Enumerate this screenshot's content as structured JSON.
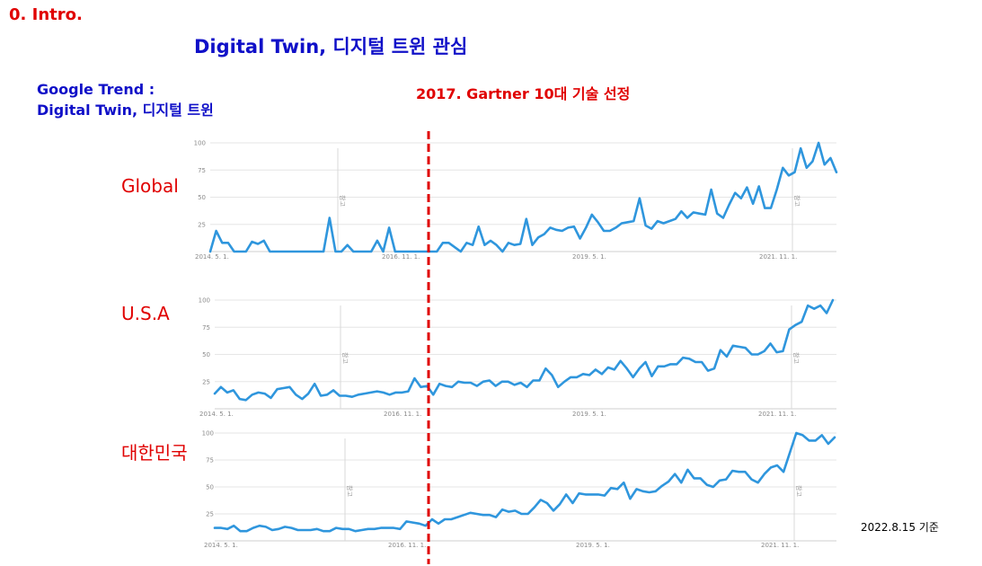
{
  "section_title": "0. Intro.",
  "slide_title": "Digital Twin, 디지털 트윈 관심",
  "trend_caption_line1": "Google Trend :",
  "trend_caption_line2": "Digital Twin, 디지털 트윈",
  "gartner_label": "2017. Gartner 10대 기술 선정",
  "date_note": "2022.8.15 기준",
  "colors": {
    "line": "#2f96dd",
    "title_blue": "#1010c8",
    "accent_red": "#e00000",
    "grid": "#e6e6e6"
  },
  "chart_data": [
    {
      "type": "line",
      "region": "Global",
      "y_ticks": [
        "100",
        "75",
        "50",
        "25"
      ],
      "ylim": [
        0,
        100
      ],
      "x_tick_labels": [
        "2014. 5. 1.",
        "2016. 11. 1.",
        "2019. 5. 1.",
        "2021. 11. 1."
      ],
      "note_label": "참고",
      "values": [
        0,
        19,
        8,
        8,
        0,
        0,
        0,
        9,
        7,
        10,
        0,
        0,
        0,
        0,
        0,
        0,
        0,
        0,
        0,
        0,
        31,
        0,
        0,
        6,
        0,
        0,
        0,
        0,
        10,
        0,
        22,
        0,
        0,
        0,
        0,
        0,
        0,
        0,
        0,
        8,
        8,
        4,
        0,
        8,
        6,
        23,
        6,
        10,
        6,
        0,
        8,
        6,
        7,
        30,
        6,
        13,
        16,
        22,
        20,
        19,
        22,
        23,
        12,
        22,
        34,
        27,
        19,
        19,
        22,
        26,
        27,
        28,
        49,
        24,
        21,
        28,
        26,
        28,
        30,
        37,
        31,
        36,
        35,
        34,
        57,
        35,
        31,
        43,
        54,
        49,
        59,
        44,
        60,
        40,
        40,
        57,
        77,
        70,
        73,
        95,
        77,
        83,
        100,
        80,
        86,
        73
      ]
    },
    {
      "type": "line",
      "region": "U.S.A",
      "y_ticks": [
        "100",
        "75",
        "50",
        "25"
      ],
      "ylim": [
        0,
        100
      ],
      "x_tick_labels": [
        "2014. 5. 1.",
        "2016. 11. 1.",
        "2019. 5. 1.",
        "2021. 11. 1."
      ],
      "note_label": "참고",
      "values": [
        14,
        20,
        15,
        17,
        9,
        8,
        13,
        15,
        14,
        10,
        18,
        19,
        20,
        13,
        9,
        14,
        23,
        12,
        13,
        17,
        12,
        12,
        11,
        13,
        14,
        15,
        16,
        15,
        13,
        15,
        15,
        16,
        28,
        20,
        21,
        13,
        23,
        21,
        20,
        25,
        24,
        24,
        21,
        25,
        26,
        21,
        25,
        25,
        22,
        24,
        20,
        26,
        26,
        37,
        31,
        20,
        25,
        29,
        29,
        32,
        31,
        36,
        32,
        38,
        36,
        44,
        37,
        29,
        37,
        43,
        30,
        39,
        39,
        41,
        41,
        47,
        46,
        43,
        43,
        35,
        37,
        54,
        48,
        58,
        57,
        56,
        50,
        50,
        53,
        60,
        52,
        53,
        73,
        77,
        80,
        95,
        92,
        95,
        88,
        100
      ]
    },
    {
      "type": "line",
      "region": "대한민국",
      "y_ticks": [
        "100",
        "75",
        "50",
        "25"
      ],
      "ylim": [
        0,
        100
      ],
      "x_tick_labels": [
        "2014. 5. 1.",
        "2016. 11. 1.",
        "2019. 5. 1.",
        "2021. 11. 1."
      ],
      "note_label": "참고",
      "values": [
        12,
        12,
        11,
        14,
        9,
        9,
        12,
        14,
        13,
        10,
        11,
        13,
        12,
        10,
        10,
        10,
        11,
        9,
        9,
        12,
        11,
        11,
        9,
        10,
        11,
        11,
        12,
        12,
        12,
        11,
        18,
        17,
        16,
        14,
        20,
        16,
        20,
        20,
        22,
        24,
        26,
        25,
        24,
        24,
        22,
        29,
        27,
        28,
        25,
        25,
        31,
        38,
        35,
        28,
        34,
        43,
        35,
        44,
        43,
        43,
        43,
        42,
        49,
        48,
        54,
        39,
        48,
        46,
        45,
        46,
        51,
        55,
        62,
        54,
        66,
        58,
        58,
        52,
        50,
        56,
        57,
        65,
        64,
        64,
        57,
        54,
        62,
        68,
        70,
        64,
        82,
        100,
        98,
        93,
        93,
        98,
        90,
        96
      ]
    }
  ]
}
